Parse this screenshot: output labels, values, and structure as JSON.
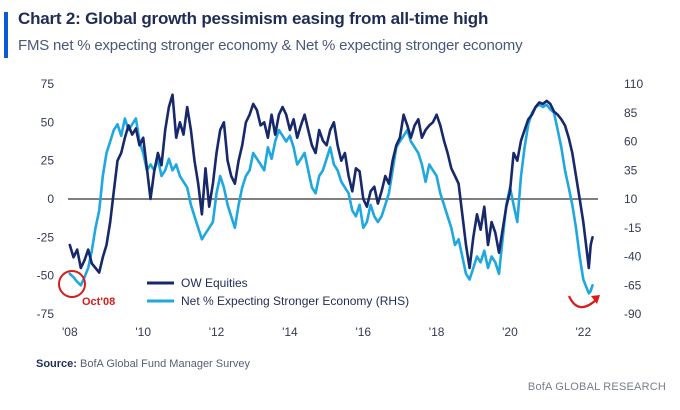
{
  "header": {
    "title": "Chart 2: Global growth pessimism easing from all-time high",
    "subtitle": "FMS net % expecting stronger economy & Net % expecting stronger economy"
  },
  "footer": {
    "source_label": "Source:",
    "source_value": "BofA Global Fund Manager Survey",
    "brand": "BofA GLOBAL RESEARCH"
  },
  "colors": {
    "accent": "#0a5bd6",
    "series1": "#17286b",
    "series2": "#1fa7e0",
    "annotation": "#d81b1b",
    "zero_line": "#333333"
  },
  "annotations": {
    "oct08": "Oct'08"
  },
  "chart_data": {
    "type": "line",
    "x_tick_labels": [
      "'08",
      "'10",
      "'12",
      "'14",
      "'16",
      "'18",
      "'20",
      "'22"
    ],
    "x_tick_years": [
      2008,
      2010,
      2012,
      2014,
      2016,
      2018,
      2020,
      2022
    ],
    "xlim": [
      2007.95,
      2022.4
    ],
    "y_left": {
      "ticks": [
        "75",
        "50",
        "25",
        "0",
        "-25",
        "-50",
        "-75"
      ],
      "values": [
        75,
        50,
        25,
        0,
        -25,
        -50,
        -75
      ],
      "lim": [
        -75,
        75
      ]
    },
    "y_right": {
      "ticks": [
        "110",
        "85",
        "60",
        "35",
        "10",
        "-15",
        "-40",
        "-65",
        "-90"
      ],
      "values": [
        110,
        85,
        60,
        35,
        10,
        -15,
        -40,
        -65,
        -90
      ],
      "lim": [
        -90,
        110
      ]
    },
    "legend_position": "lower-center",
    "grid": false,
    "series": [
      {
        "name": "OW Equities",
        "axis": "left",
        "points": [
          [
            2008.0,
            -30
          ],
          [
            2008.1,
            -38
          ],
          [
            2008.2,
            -33
          ],
          [
            2008.3,
            -45
          ],
          [
            2008.4,
            -40
          ],
          [
            2008.5,
            -33
          ],
          [
            2008.6,
            -42
          ],
          [
            2008.7,
            -45
          ],
          [
            2008.8,
            -48
          ],
          [
            2008.9,
            -38
          ],
          [
            2009.0,
            -30
          ],
          [
            2009.1,
            -15
          ],
          [
            2009.2,
            5
          ],
          [
            2009.3,
            25
          ],
          [
            2009.4,
            30
          ],
          [
            2009.5,
            40
          ],
          [
            2009.6,
            48
          ],
          [
            2009.7,
            42
          ],
          [
            2009.8,
            46
          ],
          [
            2009.9,
            35
          ],
          [
            2010.0,
            40
          ],
          [
            2010.1,
            20
          ],
          [
            2010.2,
            0
          ],
          [
            2010.3,
            18
          ],
          [
            2010.4,
            30
          ],
          [
            2010.5,
            22
          ],
          [
            2010.6,
            45
          ],
          [
            2010.7,
            60
          ],
          [
            2010.8,
            68
          ],
          [
            2010.9,
            40
          ],
          [
            2011.0,
            50
          ],
          [
            2011.1,
            42
          ],
          [
            2011.2,
            60
          ],
          [
            2011.3,
            45
          ],
          [
            2011.4,
            25
          ],
          [
            2011.5,
            10
          ],
          [
            2011.6,
            -10
          ],
          [
            2011.7,
            20
          ],
          [
            2011.8,
            -5
          ],
          [
            2011.9,
            10
          ],
          [
            2012.0,
            30
          ],
          [
            2012.1,
            45
          ],
          [
            2012.2,
            50
          ],
          [
            2012.3,
            25
          ],
          [
            2012.4,
            15
          ],
          [
            2012.5,
            10
          ],
          [
            2012.6,
            25
          ],
          [
            2012.7,
            35
          ],
          [
            2012.8,
            50
          ],
          [
            2012.9,
            55
          ],
          [
            2013.0,
            62
          ],
          [
            2013.1,
            58
          ],
          [
            2013.2,
            48
          ],
          [
            2013.3,
            50
          ],
          [
            2013.4,
            40
          ],
          [
            2013.5,
            55
          ],
          [
            2013.6,
            42
          ],
          [
            2013.7,
            55
          ],
          [
            2013.8,
            60
          ],
          [
            2013.9,
            55
          ],
          [
            2014.0,
            45
          ],
          [
            2014.1,
            52
          ],
          [
            2014.2,
            40
          ],
          [
            2014.3,
            48
          ],
          [
            2014.4,
            55
          ],
          [
            2014.5,
            45
          ],
          [
            2014.6,
            35
          ],
          [
            2014.7,
            30
          ],
          [
            2014.8,
            45
          ],
          [
            2014.9,
            38
          ],
          [
            2015.0,
            35
          ],
          [
            2015.1,
            45
          ],
          [
            2015.2,
            50
          ],
          [
            2015.3,
            35
          ],
          [
            2015.4,
            25
          ],
          [
            2015.5,
            30
          ],
          [
            2015.6,
            15
          ],
          [
            2015.7,
            5
          ],
          [
            2015.8,
            20
          ],
          [
            2015.9,
            18
          ],
          [
            2016.0,
            0
          ],
          [
            2016.1,
            -5
          ],
          [
            2016.2,
            5
          ],
          [
            2016.3,
            8
          ],
          [
            2016.4,
            -3
          ],
          [
            2016.5,
            5
          ],
          [
            2016.6,
            15
          ],
          [
            2016.7,
            10
          ],
          [
            2016.8,
            25
          ],
          [
            2016.9,
            35
          ],
          [
            2017.0,
            40
          ],
          [
            2017.1,
            55
          ],
          [
            2017.2,
            48
          ],
          [
            2017.3,
            40
          ],
          [
            2017.4,
            48
          ],
          [
            2017.5,
            52
          ],
          [
            2017.6,
            40
          ],
          [
            2017.7,
            45
          ],
          [
            2017.8,
            48
          ],
          [
            2017.9,
            50
          ],
          [
            2018.0,
            55
          ],
          [
            2018.1,
            48
          ],
          [
            2018.2,
            38
          ],
          [
            2018.3,
            30
          ],
          [
            2018.4,
            20
          ],
          [
            2018.5,
            15
          ],
          [
            2018.6,
            10
          ],
          [
            2018.7,
            -10
          ],
          [
            2018.8,
            -30
          ],
          [
            2018.9,
            -45
          ],
          [
            2019.0,
            -25
          ],
          [
            2019.1,
            -10
          ],
          [
            2019.2,
            -20
          ],
          [
            2019.3,
            -5
          ],
          [
            2019.4,
            -30
          ],
          [
            2019.5,
            -15
          ],
          [
            2019.6,
            -22
          ],
          [
            2019.7,
            -35
          ],
          [
            2019.8,
            -20
          ],
          [
            2019.9,
            -5
          ],
          [
            2020.0,
            5
          ],
          [
            2020.1,
            30
          ],
          [
            2020.2,
            25
          ],
          [
            2020.3,
            38
          ],
          [
            2020.4,
            45
          ],
          [
            2020.5,
            52
          ],
          [
            2020.6,
            55
          ],
          [
            2020.7,
            60
          ],
          [
            2020.8,
            63
          ],
          [
            2020.9,
            62
          ],
          [
            2021.0,
            64
          ],
          [
            2021.1,
            62
          ],
          [
            2021.2,
            57
          ],
          [
            2021.3,
            55
          ],
          [
            2021.4,
            52
          ],
          [
            2021.5,
            48
          ],
          [
            2021.6,
            40
          ],
          [
            2021.7,
            30
          ],
          [
            2021.8,
            15
          ],
          [
            2021.9,
            0
          ],
          [
            2022.0,
            -15
          ],
          [
            2022.1,
            -35
          ],
          [
            2022.15,
            -45
          ],
          [
            2022.2,
            -30
          ],
          [
            2022.25,
            -25
          ]
        ]
      },
      {
        "name": "Net % Expecting Stronger Economy (RHS)",
        "axis": "right",
        "points": [
          [
            2008.0,
            -55
          ],
          [
            2008.1,
            -58
          ],
          [
            2008.2,
            -62
          ],
          [
            2008.3,
            -65
          ],
          [
            2008.4,
            -58
          ],
          [
            2008.5,
            -50
          ],
          [
            2008.6,
            -35
          ],
          [
            2008.7,
            -15
          ],
          [
            2008.8,
            0
          ],
          [
            2008.9,
            30
          ],
          [
            2009.0,
            50
          ],
          [
            2009.1,
            60
          ],
          [
            2009.2,
            70
          ],
          [
            2009.3,
            75
          ],
          [
            2009.4,
            65
          ],
          [
            2009.5,
            80
          ],
          [
            2009.6,
            70
          ],
          [
            2009.7,
            75
          ],
          [
            2009.8,
            80
          ],
          [
            2009.9,
            60
          ],
          [
            2010.0,
            50
          ],
          [
            2010.1,
            35
          ],
          [
            2010.2,
            40
          ],
          [
            2010.3,
            35
          ],
          [
            2010.4,
            45
          ],
          [
            2010.5,
            30
          ],
          [
            2010.6,
            35
          ],
          [
            2010.7,
            45
          ],
          [
            2010.8,
            35
          ],
          [
            2010.9,
            40
          ],
          [
            2011.0,
            30
          ],
          [
            2011.1,
            25
          ],
          [
            2011.2,
            20
          ],
          [
            2011.3,
            5
          ],
          [
            2011.4,
            -5
          ],
          [
            2011.5,
            -15
          ],
          [
            2011.6,
            -25
          ],
          [
            2011.7,
            -20
          ],
          [
            2011.8,
            -15
          ],
          [
            2011.9,
            -10
          ],
          [
            2012.0,
            15
          ],
          [
            2012.1,
            30
          ],
          [
            2012.2,
            20
          ],
          [
            2012.3,
            5
          ],
          [
            2012.4,
            -5
          ],
          [
            2012.5,
            -15
          ],
          [
            2012.6,
            5
          ],
          [
            2012.7,
            20
          ],
          [
            2012.8,
            30
          ],
          [
            2012.9,
            35
          ],
          [
            2013.0,
            50
          ],
          [
            2013.1,
            45
          ],
          [
            2013.2,
            40
          ],
          [
            2013.3,
            35
          ],
          [
            2013.4,
            55
          ],
          [
            2013.5,
            45
          ],
          [
            2013.6,
            60
          ],
          [
            2013.7,
            70
          ],
          [
            2013.8,
            65
          ],
          [
            2013.9,
            60
          ],
          [
            2014.0,
            65
          ],
          [
            2014.1,
            55
          ],
          [
            2014.2,
            40
          ],
          [
            2014.3,
            45
          ],
          [
            2014.4,
            50
          ],
          [
            2014.5,
            35
          ],
          [
            2014.6,
            20
          ],
          [
            2014.7,
            15
          ],
          [
            2014.8,
            30
          ],
          [
            2014.9,
            35
          ],
          [
            2015.0,
            45
          ],
          [
            2015.1,
            55
          ],
          [
            2015.2,
            40
          ],
          [
            2015.3,
            35
          ],
          [
            2015.4,
            25
          ],
          [
            2015.5,
            20
          ],
          [
            2015.6,
            15
          ],
          [
            2015.7,
            0
          ],
          [
            2015.8,
            -5
          ],
          [
            2015.9,
            5
          ],
          [
            2016.0,
            -15
          ],
          [
            2016.1,
            -10
          ],
          [
            2016.2,
            5
          ],
          [
            2016.3,
            -5
          ],
          [
            2016.4,
            -10
          ],
          [
            2016.5,
            -5
          ],
          [
            2016.6,
            5
          ],
          [
            2016.7,
            15
          ],
          [
            2016.8,
            35
          ],
          [
            2016.9,
            55
          ],
          [
            2017.0,
            60
          ],
          [
            2017.1,
            65
          ],
          [
            2017.2,
            70
          ],
          [
            2017.3,
            60
          ],
          [
            2017.4,
            55
          ],
          [
            2017.5,
            50
          ],
          [
            2017.6,
            40
          ],
          [
            2017.7,
            25
          ],
          [
            2017.8,
            40
          ],
          [
            2017.9,
            35
          ],
          [
            2018.0,
            30
          ],
          [
            2018.1,
            15
          ],
          [
            2018.2,
            5
          ],
          [
            2018.3,
            -5
          ],
          [
            2018.4,
            -15
          ],
          [
            2018.5,
            -30
          ],
          [
            2018.6,
            -25
          ],
          [
            2018.7,
            -40
          ],
          [
            2018.8,
            -55
          ],
          [
            2018.9,
            -60
          ],
          [
            2019.0,
            -50
          ],
          [
            2019.1,
            -40
          ],
          [
            2019.2,
            -45
          ],
          [
            2019.3,
            -35
          ],
          [
            2019.4,
            -50
          ],
          [
            2019.5,
            -40
          ],
          [
            2019.6,
            -45
          ],
          [
            2019.7,
            -55
          ],
          [
            2019.8,
            -25
          ],
          [
            2019.9,
            5
          ],
          [
            2020.0,
            20
          ],
          [
            2020.1,
            5
          ],
          [
            2020.2,
            -10
          ],
          [
            2020.3,
            30
          ],
          [
            2020.4,
            55
          ],
          [
            2020.5,
            75
          ],
          [
            2020.6,
            85
          ],
          [
            2020.7,
            90
          ],
          [
            2020.8,
            92
          ],
          [
            2020.9,
            90
          ],
          [
            2021.0,
            92
          ],
          [
            2021.1,
            88
          ],
          [
            2021.2,
            85
          ],
          [
            2021.3,
            70
          ],
          [
            2021.4,
            55
          ],
          [
            2021.5,
            35
          ],
          [
            2021.6,
            20
          ],
          [
            2021.7,
            5
          ],
          [
            2021.8,
            -15
          ],
          [
            2021.9,
            -40
          ],
          [
            2022.0,
            -60
          ],
          [
            2022.1,
            -68
          ],
          [
            2022.15,
            -72
          ],
          [
            2022.2,
            -70
          ],
          [
            2022.25,
            -65
          ]
        ]
      }
    ]
  }
}
